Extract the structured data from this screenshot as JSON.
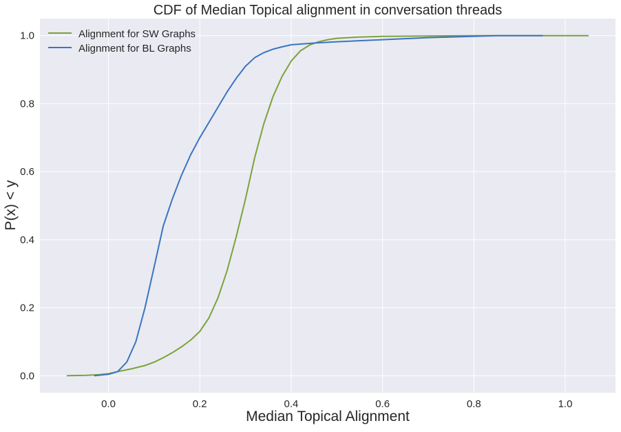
{
  "chart_data": {
    "type": "line",
    "title": "CDF of Median Topical alignment in conversation threads",
    "xlabel": "Median Topical Alignment",
    "ylabel": "P(x) < y",
    "xlim": [
      -0.15,
      1.11
    ],
    "ylim": [
      -0.05,
      1.05
    ],
    "xticks": [
      0.0,
      0.2,
      0.4,
      0.6,
      0.8,
      1.0
    ],
    "xtick_labels": [
      "0.0",
      "0.2",
      "0.4",
      "0.6",
      "0.8",
      "1.0"
    ],
    "yticks": [
      0.0,
      0.2,
      0.4,
      0.6,
      0.8,
      1.0
    ],
    "ytick_labels": [
      "0.0",
      "0.2",
      "0.4",
      "0.6",
      "0.8",
      "1.0"
    ],
    "grid": true,
    "legend_position": "top-left",
    "series": [
      {
        "name": "Alignment for SW Graphs",
        "color": "#7aa33a",
        "x": [
          -0.09,
          -0.05,
          -0.02,
          0.0,
          0.02,
          0.05,
          0.08,
          0.1,
          0.12,
          0.14,
          0.16,
          0.18,
          0.2,
          0.22,
          0.24,
          0.26,
          0.28,
          0.3,
          0.32,
          0.34,
          0.36,
          0.38,
          0.4,
          0.42,
          0.44,
          0.46,
          0.48,
          0.5,
          0.55,
          0.6,
          0.7,
          0.8,
          0.9,
          1.05
        ],
        "y": [
          0.0,
          0.001,
          0.003,
          0.006,
          0.012,
          0.02,
          0.03,
          0.04,
          0.053,
          0.068,
          0.085,
          0.105,
          0.13,
          0.17,
          0.23,
          0.31,
          0.41,
          0.52,
          0.64,
          0.74,
          0.82,
          0.88,
          0.925,
          0.955,
          0.972,
          0.982,
          0.988,
          0.992,
          0.996,
          0.998,
          0.999,
          1.0,
          1.0,
          1.0
        ]
      },
      {
        "name": "Alignment for BL Graphs",
        "color": "#3a74c0",
        "x": [
          -0.03,
          0.0,
          0.02,
          0.04,
          0.06,
          0.08,
          0.1,
          0.12,
          0.14,
          0.16,
          0.18,
          0.2,
          0.22,
          0.24,
          0.26,
          0.28,
          0.3,
          0.32,
          0.34,
          0.36,
          0.38,
          0.4,
          0.45,
          0.5,
          0.6,
          0.7,
          0.8,
          0.85,
          0.95
        ],
        "y": [
          0.0,
          0.004,
          0.012,
          0.04,
          0.1,
          0.2,
          0.32,
          0.44,
          0.52,
          0.59,
          0.65,
          0.7,
          0.745,
          0.79,
          0.835,
          0.875,
          0.91,
          0.935,
          0.95,
          0.96,
          0.967,
          0.973,
          0.978,
          0.982,
          0.988,
          0.994,
          0.998,
          1.0,
          1.0
        ]
      }
    ]
  }
}
